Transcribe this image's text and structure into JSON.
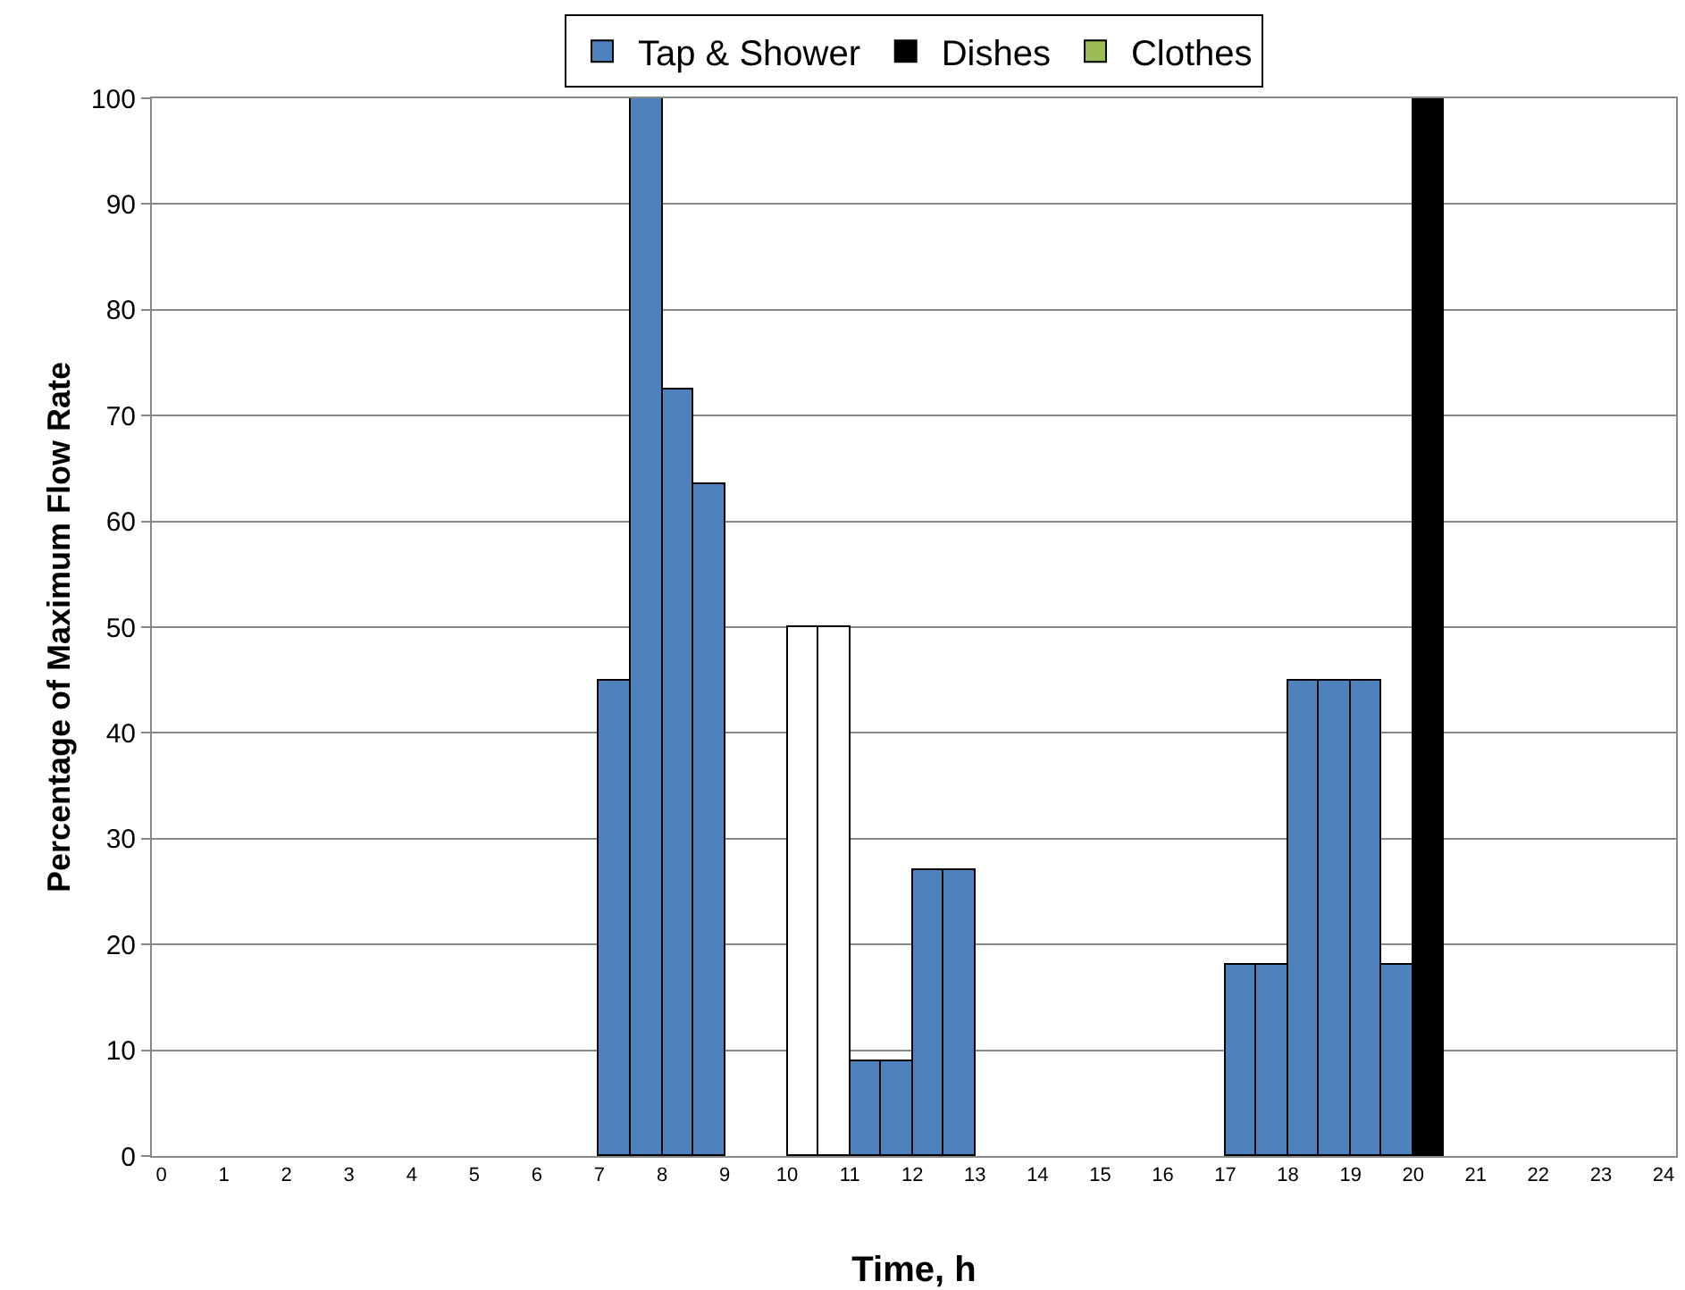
{
  "chart_data": {
    "type": "bar",
    "xlabel": "Time, h",
    "ylabel": "Percentage of Maximum Flow Rate",
    "series": [
      {
        "name": "Tap & Shower",
        "color": "#4f81bd",
        "x": [
          7.25,
          7.75,
          8.25,
          8.75,
          11.25,
          11.75,
          12.25,
          12.75,
          17.25,
          17.75,
          18.25,
          18.75,
          19.25,
          19.75
        ],
        "values": [
          45,
          100,
          72.5,
          63.5,
          9,
          9,
          27,
          27,
          18,
          18,
          45,
          45,
          45,
          18
        ]
      },
      {
        "name": "Dishes",
        "color": "#000000",
        "x": [
          20.25
        ],
        "values": [
          100
        ]
      },
      {
        "name": "Clothes",
        "color": "#9bbb59",
        "colors": [
          "#ffffff",
          "#ffffff"
        ],
        "x": [
          10.25,
          10.75
        ],
        "values": [
          50,
          50
        ]
      }
    ],
    "xlim": [
      -0.15,
      24.2
    ],
    "xticks": [
      0,
      1,
      2,
      3,
      4,
      5,
      6,
      7,
      8,
      9,
      10,
      11,
      12,
      13,
      14,
      15,
      16,
      17,
      18,
      19,
      20,
      21,
      22,
      23,
      24
    ],
    "ylim": [
      0,
      100
    ],
    "yticks": [
      0,
      10,
      20,
      30,
      40,
      50,
      60,
      70,
      80,
      90,
      100
    ],
    "grid": "y",
    "legend": "top"
  }
}
